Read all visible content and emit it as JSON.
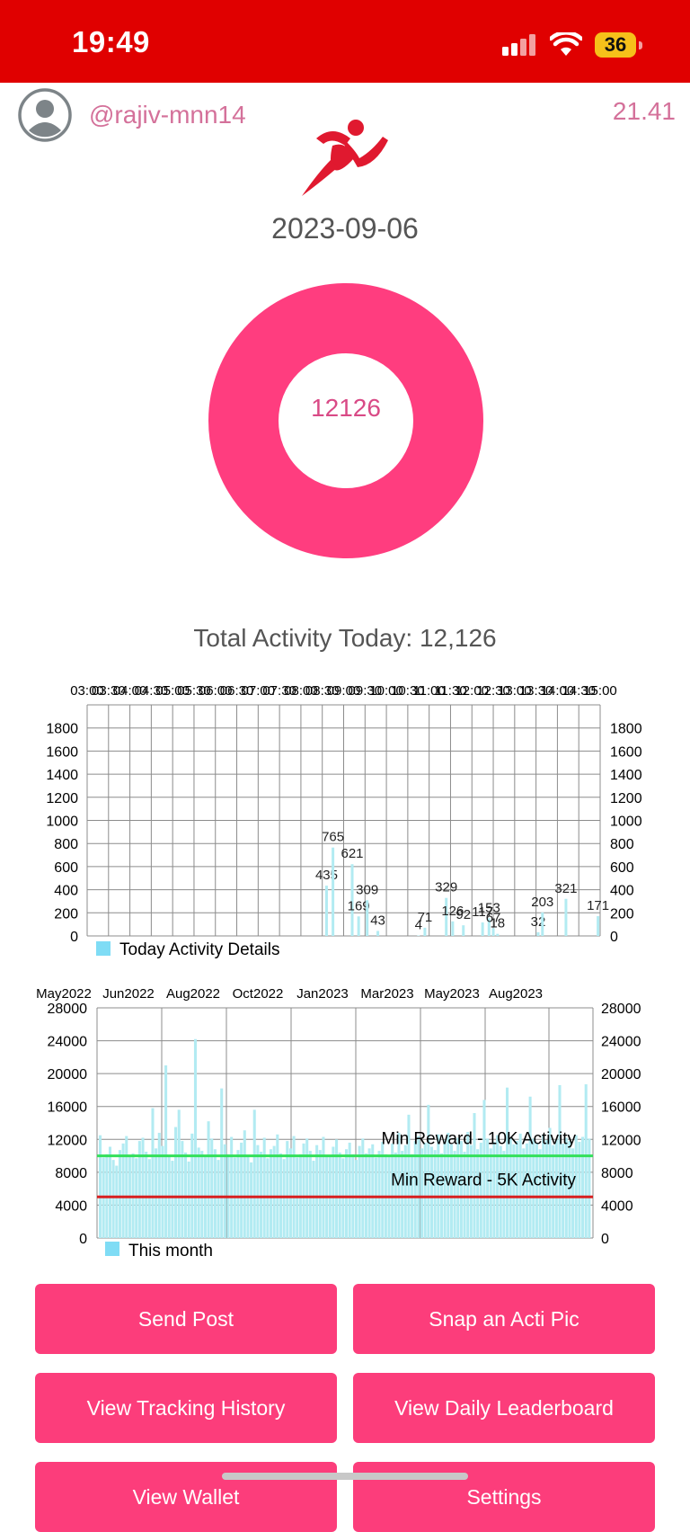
{
  "status": {
    "time": "19:49",
    "battery": "36",
    "icons": [
      "signal-icon",
      "wifi-icon",
      "battery-icon"
    ]
  },
  "header": {
    "username": "@rajiv-mnn14",
    "balance": "21.41",
    "avatar_icon": "user-avatar-icon",
    "logo_icon": "runner-icon"
  },
  "activity": {
    "date": "2023-09-06",
    "donut_value": "12126",
    "total_label": "Total Activity Today: 12,126"
  },
  "colors": {
    "status_bar": "#e00000",
    "accent": "#ff3d7f",
    "bar": "#b2ebf2",
    "legend": "#7fdcf5",
    "green_line": "#33e05a",
    "red_line": "#d82020"
  },
  "chart_data": [
    {
      "type": "bar",
      "legend": "Today Activity Details",
      "x_tick_labels": [
        "03:00",
        "03:30",
        "04:00",
        "04:30",
        "05:00",
        "05:30",
        "06:00",
        "06:30",
        "07:00",
        "07:30",
        "08:00",
        "08:30",
        "09:00",
        "09:30",
        "10:00",
        "10:30",
        "11:00",
        "11:30",
        "12:00",
        "12:30",
        "13:00",
        "13:30",
        "14:00",
        "14:30",
        "15:00"
      ],
      "y_ticks": [
        0,
        200,
        400,
        600,
        800,
        1000,
        1200,
        1400,
        1600,
        1800
      ],
      "ylim": [
        0,
        2000
      ],
      "grid": true,
      "legend_position": "bottom-left",
      "points": [
        {
          "t": 8.6,
          "v": 435
        },
        {
          "t": 8.75,
          "v": 765
        },
        {
          "t": 9.2,
          "v": 621
        },
        {
          "t": 9.35,
          "v": 169
        },
        {
          "t": 9.55,
          "v": 309
        },
        {
          "t": 9.8,
          "v": 43
        },
        {
          "t": 10.75,
          "v": 4
        },
        {
          "t": 10.9,
          "v": 71
        },
        {
          "t": 11.4,
          "v": 329
        },
        {
          "t": 11.55,
          "v": 126
        },
        {
          "t": 11.8,
          "v": 92
        },
        {
          "t": 12.25,
          "v": 117
        },
        {
          "t": 12.4,
          "v": 153
        },
        {
          "t": 12.5,
          "v": 67
        },
        {
          "t": 12.6,
          "v": 18
        },
        {
          "t": 13.55,
          "v": 32
        },
        {
          "t": 13.65,
          "v": 203
        },
        {
          "t": 14.2,
          "v": 321
        },
        {
          "t": 14.95,
          "v": 171
        }
      ]
    },
    {
      "type": "bar",
      "legend": "This month",
      "x_tick_labels": [
        "May2022",
        "Jun2022",
        "Aug2022",
        "Oct2022",
        "Jan2023",
        "Mar2023",
        "May2023",
        "Aug2023"
      ],
      "y_ticks": [
        0,
        4000,
        8000,
        12000,
        16000,
        20000,
        24000,
        28000
      ],
      "ylim": [
        0,
        28000
      ],
      "grid": true,
      "legend_position": "bottom-left",
      "reference_lines": [
        {
          "label": "Min Reward - 10K Activity",
          "value": 10000,
          "color": "#33e05a"
        },
        {
          "label": "Min Reward - 5K Activity",
          "value": 5000,
          "color": "#d82020"
        }
      ],
      "values": [
        12500,
        9800,
        10200,
        11100,
        9500,
        8800,
        10700,
        11500,
        12400,
        9900,
        10300,
        9700,
        11800,
        12200,
        10500,
        9600,
        15800,
        10900,
        12800,
        11200,
        21000,
        10100,
        9400,
        13500,
        15600,
        11800,
        10400,
        9300,
        12700,
        24200,
        11000,
        10600,
        9900,
        14200,
        12100,
        10800,
        9500,
        18200,
        11400,
        10200,
        12300,
        9800,
        10700,
        11600,
        13100,
        10000,
        9200,
        15600,
        11300,
        10500,
        12200,
        9700,
        10800,
        11200,
        12600,
        10300,
        9600,
        11800,
        10900,
        12400,
        9800,
        10200,
        11500,
        12100,
        10600,
        9400,
        11300,
        10700,
        12300,
        10100,
        9900,
        11100,
        12000,
        10400,
        9700,
        10800,
        11600,
        10200,
        9500,
        11200,
        12100,
        10300,
        10900,
        11400,
        9800,
        10600,
        11700,
        10200,
        9900,
        11500,
        10400,
        12800,
        10600,
        11300,
        15000,
        10200,
        11800,
        12400,
        10900,
        11600,
        16200,
        11100,
        10700,
        12600,
        10300,
        11900,
        12800,
        11400,
        10600,
        12200,
        11800,
        10500,
        12900,
        11300,
        15200,
        10800,
        11600,
        16800,
        12100,
        10900,
        11700,
        12500,
        11200,
        10600,
        18300,
        12300,
        11400,
        11800,
        12700,
        10900,
        11500,
        17200,
        12100,
        11600,
        10800,
        12600,
        11900,
        13400,
        11300,
        12000,
        18600,
        11500,
        12200,
        11800,
        10900,
        12500,
        11700,
        12300,
        18700,
        12100
      ]
    }
  ],
  "buttons": [
    {
      "label": "Send Post"
    },
    {
      "label": "Snap an Acti Pic"
    },
    {
      "label": "View Tracking History"
    },
    {
      "label": "View Daily Leaderboard"
    },
    {
      "label": "View Wallet"
    },
    {
      "label": "Settings"
    }
  ]
}
